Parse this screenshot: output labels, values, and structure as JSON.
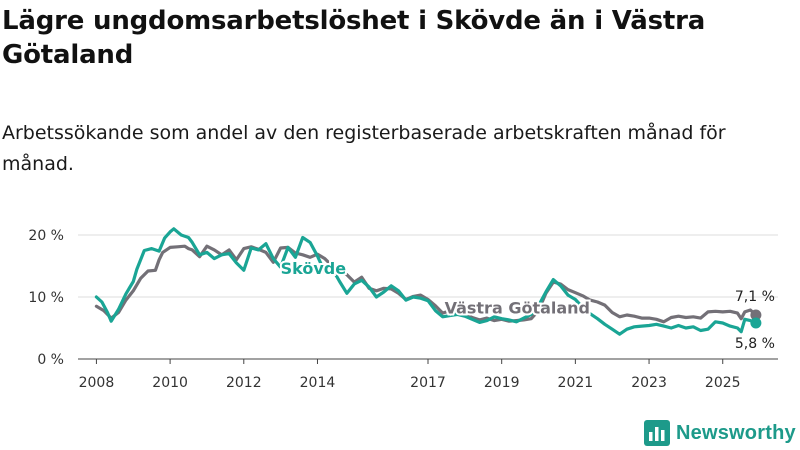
{
  "title": "Lägre ungdomsarbetslöshet i Skövde än i Västra Götaland",
  "subtitle": "Arbetssökande som andel av den registerbaserade arbetskraften månad för månad.",
  "brand": "Newsworthy",
  "colors": {
    "skovde": "#1aa595",
    "vastra": "#737077",
    "grid": "#dddddd",
    "brand": "#1d9a8a"
  },
  "chart_data": {
    "type": "line",
    "ylim": [
      0,
      20
    ],
    "xlim": [
      2007.5,
      2026.5
    ],
    "y_ticks": [
      {
        "value": 0,
        "label": "0 %"
      },
      {
        "value": 10,
        "label": "10 %"
      },
      {
        "value": 20,
        "label": "20 %"
      }
    ],
    "x_ticks": [
      {
        "value": 2008,
        "label": "2008"
      },
      {
        "value": 2010,
        "label": "2010"
      },
      {
        "value": 2012,
        "label": "2012"
      },
      {
        "value": 2014,
        "label": "2014"
      },
      {
        "value": 2017,
        "label": "2017"
      },
      {
        "value": 2019,
        "label": "2019"
      },
      {
        "value": 2021,
        "label": "2021"
      },
      {
        "value": 2023,
        "label": "2023"
      },
      {
        "value": 2025,
        "label": "2025"
      }
    ],
    "series": [
      {
        "name": "Västra Götaland",
        "color": "#737077",
        "end_label": "7,1 %",
        "points": [
          [
            2008.0,
            8.5
          ],
          [
            2008.2,
            7.8
          ],
          [
            2008.4,
            6.6
          ],
          [
            2008.6,
            7.5
          ],
          [
            2008.8,
            9.5
          ],
          [
            2009.0,
            11.0
          ],
          [
            2009.2,
            13.0
          ],
          [
            2009.4,
            14.2
          ],
          [
            2009.6,
            14.3
          ],
          [
            2009.7,
            16.0
          ],
          [
            2009.8,
            17.2
          ],
          [
            2010.0,
            18.0
          ],
          [
            2010.2,
            18.1
          ],
          [
            2010.4,
            18.2
          ],
          [
            2010.5,
            17.8
          ],
          [
            2010.6,
            17.6
          ],
          [
            2010.8,
            16.5
          ],
          [
            2011.0,
            18.2
          ],
          [
            2011.2,
            17.6
          ],
          [
            2011.4,
            16.8
          ],
          [
            2011.6,
            17.6
          ],
          [
            2011.8,
            16.0
          ],
          [
            2012.0,
            17.8
          ],
          [
            2012.2,
            18.1
          ],
          [
            2012.4,
            17.7
          ],
          [
            2012.6,
            17.2
          ],
          [
            2012.8,
            15.6
          ],
          [
            2013.0,
            17.9
          ],
          [
            2013.2,
            18.0
          ],
          [
            2013.4,
            17.1
          ],
          [
            2013.6,
            16.8
          ],
          [
            2013.8,
            16.4
          ],
          [
            2014.0,
            16.9
          ],
          [
            2014.2,
            16.2
          ],
          [
            2014.4,
            15.0
          ],
          [
            2014.6,
            14.2
          ],
          [
            2014.8,
            13.6
          ],
          [
            2015.0,
            12.4
          ],
          [
            2015.2,
            13.2
          ],
          [
            2015.4,
            11.4
          ],
          [
            2015.6,
            11.0
          ],
          [
            2015.8,
            11.4
          ],
          [
            2016.0,
            11.3
          ],
          [
            2016.2,
            10.6
          ],
          [
            2016.4,
            9.6
          ],
          [
            2016.6,
            10.1
          ],
          [
            2016.8,
            10.3
          ],
          [
            2017.0,
            9.6
          ],
          [
            2017.2,
            8.6
          ],
          [
            2017.4,
            7.4
          ],
          [
            2017.6,
            7.8
          ],
          [
            2017.8,
            7.5
          ],
          [
            2018.0,
            7.3
          ],
          [
            2018.2,
            6.7
          ],
          [
            2018.4,
            6.3
          ],
          [
            2018.6,
            6.6
          ],
          [
            2018.8,
            6.2
          ],
          [
            2019.0,
            6.4
          ],
          [
            2019.2,
            6.1
          ],
          [
            2019.4,
            6.2
          ],
          [
            2019.6,
            6.3
          ],
          [
            2019.8,
            6.5
          ],
          [
            2020.0,
            7.8
          ],
          [
            2020.2,
            10.6
          ],
          [
            2020.4,
            12.4
          ],
          [
            2020.6,
            12.1
          ],
          [
            2020.8,
            11.2
          ],
          [
            2021.0,
            10.7
          ],
          [
            2021.2,
            10.2
          ],
          [
            2021.4,
            9.5
          ],
          [
            2021.6,
            9.2
          ],
          [
            2021.8,
            8.7
          ],
          [
            2022.0,
            7.5
          ],
          [
            2022.2,
            6.8
          ],
          [
            2022.4,
            7.1
          ],
          [
            2022.6,
            6.9
          ],
          [
            2022.8,
            6.6
          ],
          [
            2023.0,
            6.6
          ],
          [
            2023.2,
            6.4
          ],
          [
            2023.4,
            6.0
          ],
          [
            2023.6,
            6.7
          ],
          [
            2023.8,
            6.9
          ],
          [
            2024.0,
            6.7
          ],
          [
            2024.2,
            6.8
          ],
          [
            2024.4,
            6.6
          ],
          [
            2024.6,
            7.6
          ],
          [
            2024.8,
            7.7
          ],
          [
            2025.0,
            7.6
          ],
          [
            2025.2,
            7.7
          ],
          [
            2025.4,
            7.4
          ],
          [
            2025.5,
            6.5
          ],
          [
            2025.6,
            7.6
          ],
          [
            2025.75,
            7.9
          ],
          [
            2025.9,
            7.1
          ]
        ]
      },
      {
        "name": "Skövde",
        "color": "#1aa595",
        "end_label": "5,8 %",
        "points": [
          [
            2008.0,
            10.0
          ],
          [
            2008.15,
            9.2
          ],
          [
            2008.3,
            7.5
          ],
          [
            2008.4,
            6.1
          ],
          [
            2008.6,
            8.0
          ],
          [
            2008.8,
            10.5
          ],
          [
            2009.0,
            12.5
          ],
          [
            2009.1,
            14.5
          ],
          [
            2009.3,
            17.5
          ],
          [
            2009.5,
            17.8
          ],
          [
            2009.7,
            17.4
          ],
          [
            2009.85,
            19.5
          ],
          [
            2010.0,
            20.5
          ],
          [
            2010.1,
            21.0
          ],
          [
            2010.3,
            20.0
          ],
          [
            2010.5,
            19.6
          ],
          [
            2010.6,
            18.8
          ],
          [
            2010.8,
            16.8
          ],
          [
            2011.0,
            17.2
          ],
          [
            2011.2,
            16.2
          ],
          [
            2011.4,
            16.8
          ],
          [
            2011.6,
            17.0
          ],
          [
            2011.8,
            15.5
          ],
          [
            2012.0,
            14.3
          ],
          [
            2012.2,
            17.9
          ],
          [
            2012.4,
            17.6
          ],
          [
            2012.6,
            18.6
          ],
          [
            2012.8,
            16.2
          ],
          [
            2013.0,
            14.8
          ],
          [
            2013.2,
            18.0
          ],
          [
            2013.4,
            16.4
          ],
          [
            2013.6,
            19.6
          ],
          [
            2013.8,
            18.8
          ],
          [
            2014.0,
            16.6
          ],
          [
            2014.2,
            14.0
          ],
          [
            2014.4,
            14.6
          ],
          [
            2014.6,
            12.5
          ],
          [
            2014.8,
            10.6
          ],
          [
            2015.0,
            12.1
          ],
          [
            2015.2,
            12.7
          ],
          [
            2015.4,
            11.6
          ],
          [
            2015.6,
            10.0
          ],
          [
            2015.8,
            10.8
          ],
          [
            2016.0,
            11.8
          ],
          [
            2016.2,
            11.0
          ],
          [
            2016.4,
            9.5
          ],
          [
            2016.6,
            10.0
          ],
          [
            2016.8,
            9.8
          ],
          [
            2017.0,
            9.4
          ],
          [
            2017.2,
            7.8
          ],
          [
            2017.4,
            6.8
          ],
          [
            2017.6,
            7.0
          ],
          [
            2017.8,
            7.2
          ],
          [
            2018.0,
            6.9
          ],
          [
            2018.2,
            6.4
          ],
          [
            2018.4,
            5.9
          ],
          [
            2018.6,
            6.2
          ],
          [
            2018.8,
            6.8
          ],
          [
            2019.0,
            6.5
          ],
          [
            2019.2,
            6.3
          ],
          [
            2019.4,
            6.0
          ],
          [
            2019.6,
            6.6
          ],
          [
            2019.8,
            7.2
          ],
          [
            2020.0,
            8.6
          ],
          [
            2020.2,
            10.8
          ],
          [
            2020.4,
            12.8
          ],
          [
            2020.6,
            11.8
          ],
          [
            2020.8,
            10.3
          ],
          [
            2021.0,
            9.6
          ],
          [
            2021.2,
            8.3
          ],
          [
            2021.4,
            7.3
          ],
          [
            2021.6,
            6.5
          ],
          [
            2021.8,
            5.6
          ],
          [
            2022.0,
            4.8
          ],
          [
            2022.2,
            4.0
          ],
          [
            2022.4,
            4.8
          ],
          [
            2022.6,
            5.2
          ],
          [
            2022.8,
            5.3
          ],
          [
            2023.0,
            5.4
          ],
          [
            2023.2,
            5.6
          ],
          [
            2023.4,
            5.3
          ],
          [
            2023.6,
            5.0
          ],
          [
            2023.8,
            5.4
          ],
          [
            2024.0,
            5.0
          ],
          [
            2024.2,
            5.2
          ],
          [
            2024.4,
            4.6
          ],
          [
            2024.6,
            4.8
          ],
          [
            2024.8,
            6.0
          ],
          [
            2025.0,
            5.8
          ],
          [
            2025.2,
            5.3
          ],
          [
            2025.4,
            5.0
          ],
          [
            2025.5,
            4.4
          ],
          [
            2025.6,
            6.4
          ],
          [
            2025.75,
            6.2
          ],
          [
            2025.9,
            5.8
          ]
        ]
      }
    ]
  }
}
